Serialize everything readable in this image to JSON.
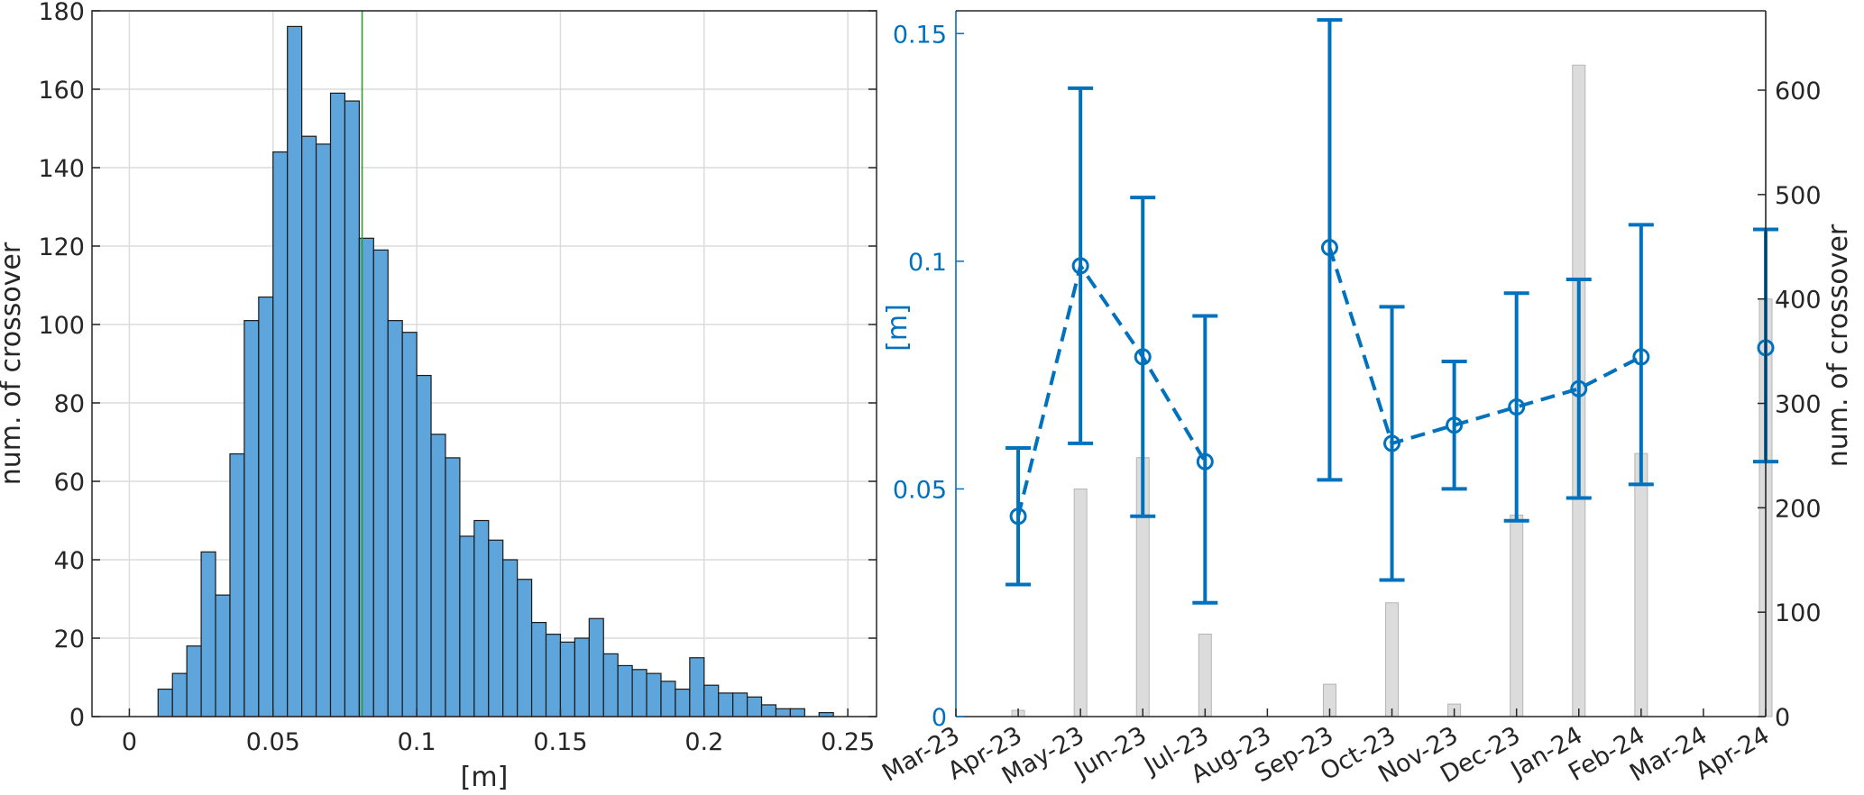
{
  "chart_data": [
    {
      "type": "histogram",
      "xlabel": "[m]",
      "ylabel": "num. of crossover",
      "xlim": [
        -0.013,
        0.26
      ],
      "ylim": [
        0,
        180
      ],
      "xticks": [
        0,
        0.05,
        0.1,
        0.15,
        0.2,
        0.25
      ],
      "xtick_labels": [
        "0",
        "0.05",
        "0.1",
        "0.15",
        "0.2",
        "0.25"
      ],
      "yticks": [
        0,
        20,
        40,
        60,
        80,
        100,
        120,
        140,
        160,
        180
      ],
      "ytick_labels": [
        "0",
        "20",
        "40",
        "60",
        "80",
        "100",
        "120",
        "140",
        "160",
        "180"
      ],
      "grid": true,
      "bin_width": 0.005,
      "bin_start": 0,
      "values": [
        0,
        0,
        7,
        11,
        18,
        42,
        31,
        67,
        101,
        107,
        144,
        176,
        148,
        146,
        159,
        157,
        122,
        119,
        101,
        98,
        87,
        72,
        66,
        46,
        50,
        45,
        40,
        35,
        24,
        21,
        19,
        20,
        25,
        16,
        13,
        12,
        11,
        9,
        7,
        15,
        8,
        6,
        6,
        5,
        3,
        2,
        2,
        0,
        1,
        0
      ],
      "bar_color": "#5DA5DA",
      "bar_edge_color": "#1a1a1a",
      "vertical_line": {
        "x": 0.081,
        "color": "#2ca02c"
      }
    },
    {
      "type": "line",
      "xtick_labels": [
        "Mar-23",
        "Apr-23",
        "May-23",
        "Jun-23",
        "Jul-23",
        "Aug-23",
        "Sep-23",
        "Oct-23",
        "Nov-23",
        "Dec-23",
        "Jan-24",
        "Feb-24",
        "Mar-24",
        "Apr-24"
      ],
      "ylabel_left": "[m]",
      "ylabel_right": "num. of crossover",
      "ylim_left": [
        0,
        0.155
      ],
      "ylim_right": [
        0,
        676
      ],
      "yticks_left": [
        0,
        0.05,
        0.1,
        0.15
      ],
      "ytick_labels_left": [
        "0",
        "0.05",
        "0.1",
        "0.15"
      ],
      "yticks_right": [
        0,
        100,
        200,
        300,
        400,
        500,
        600
      ],
      "ytick_labels_right": [
        "0",
        "100",
        "200",
        "300",
        "400",
        "500",
        "600"
      ],
      "grid": false,
      "accent_color": "#0072BD",
      "series": [
        {
          "kind": "errorbar-line",
          "x": [
            0,
            1,
            2,
            3,
            5,
            6,
            7,
            8,
            9,
            10,
            12
          ],
          "y": [
            0.044,
            0.099,
            0.079,
            0.056,
            0.103,
            0.06,
            0.064,
            0.068,
            0.072,
            0.079,
            0.081
          ],
          "err_low": [
            0.029,
            0.06,
            0.044,
            0.025,
            0.052,
            0.03,
            0.05,
            0.043,
            0.048,
            0.051,
            0.056
          ],
          "err_high": [
            0.059,
            0.138,
            0.114,
            0.088,
            0.153,
            0.09,
            0.078,
            0.093,
            0.096,
            0.108,
            0.107
          ],
          "line_style": "dashed"
        },
        {
          "kind": "bar",
          "axis": "right",
          "x": [
            0,
            1,
            2,
            3,
            5,
            6,
            7,
            8,
            9,
            10,
            12
          ],
          "values": [
            6,
            218,
            248,
            79,
            31,
            109,
            12,
            193,
            624,
            252,
            400
          ],
          "color": "#dcdcdc"
        }
      ]
    }
  ]
}
